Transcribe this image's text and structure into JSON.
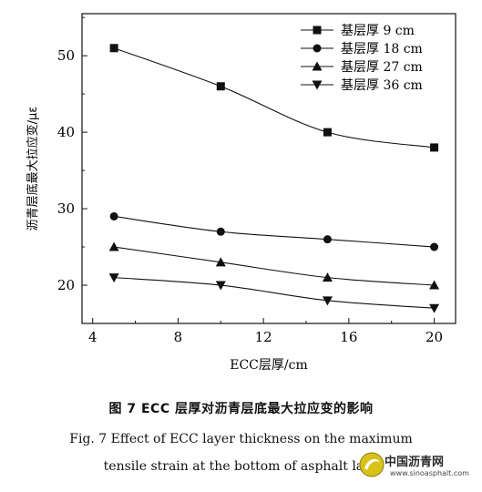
{
  "chart_data": {
    "type": "line",
    "ylabel": "沥青层底最大拉应变/με",
    "xlabel": "ECC层厚/cm",
    "xlim": [
      3.5,
      21
    ],
    "ylim": [
      15,
      55.5
    ],
    "xticks": [
      4,
      8,
      12,
      16,
      20
    ],
    "yticks": [
      20,
      30,
      40,
      50
    ],
    "legend_position": "top-right",
    "x": [
      5,
      10,
      15,
      20
    ],
    "series": [
      {
        "name": "基层厚  9 cm",
        "marker": "square",
        "values": [
          51,
          46,
          40,
          38
        ]
      },
      {
        "name": "基层厚 18 cm",
        "marker": "circle",
        "values": [
          29,
          27,
          26,
          25
        ]
      },
      {
        "name": "基层厚 27 cm",
        "marker": "triangle-up",
        "values": [
          25,
          23,
          21,
          20
        ]
      },
      {
        "name": "基层厚 36 cm",
        "marker": "triangle-down",
        "values": [
          21,
          20,
          18,
          17
        ]
      }
    ]
  },
  "caption": {
    "cn": "图 7   ECC 层厚对沥青层底最大拉应变的影响",
    "en_line1": "Fig. 7    Effect of ECC layer thickness on the maximum",
    "en_line2": "tensile strain at the bottom of asphalt laye"
  },
  "watermark": {
    "name": "中国沥青网",
    "url": "www.sinoasphalt.com"
  }
}
